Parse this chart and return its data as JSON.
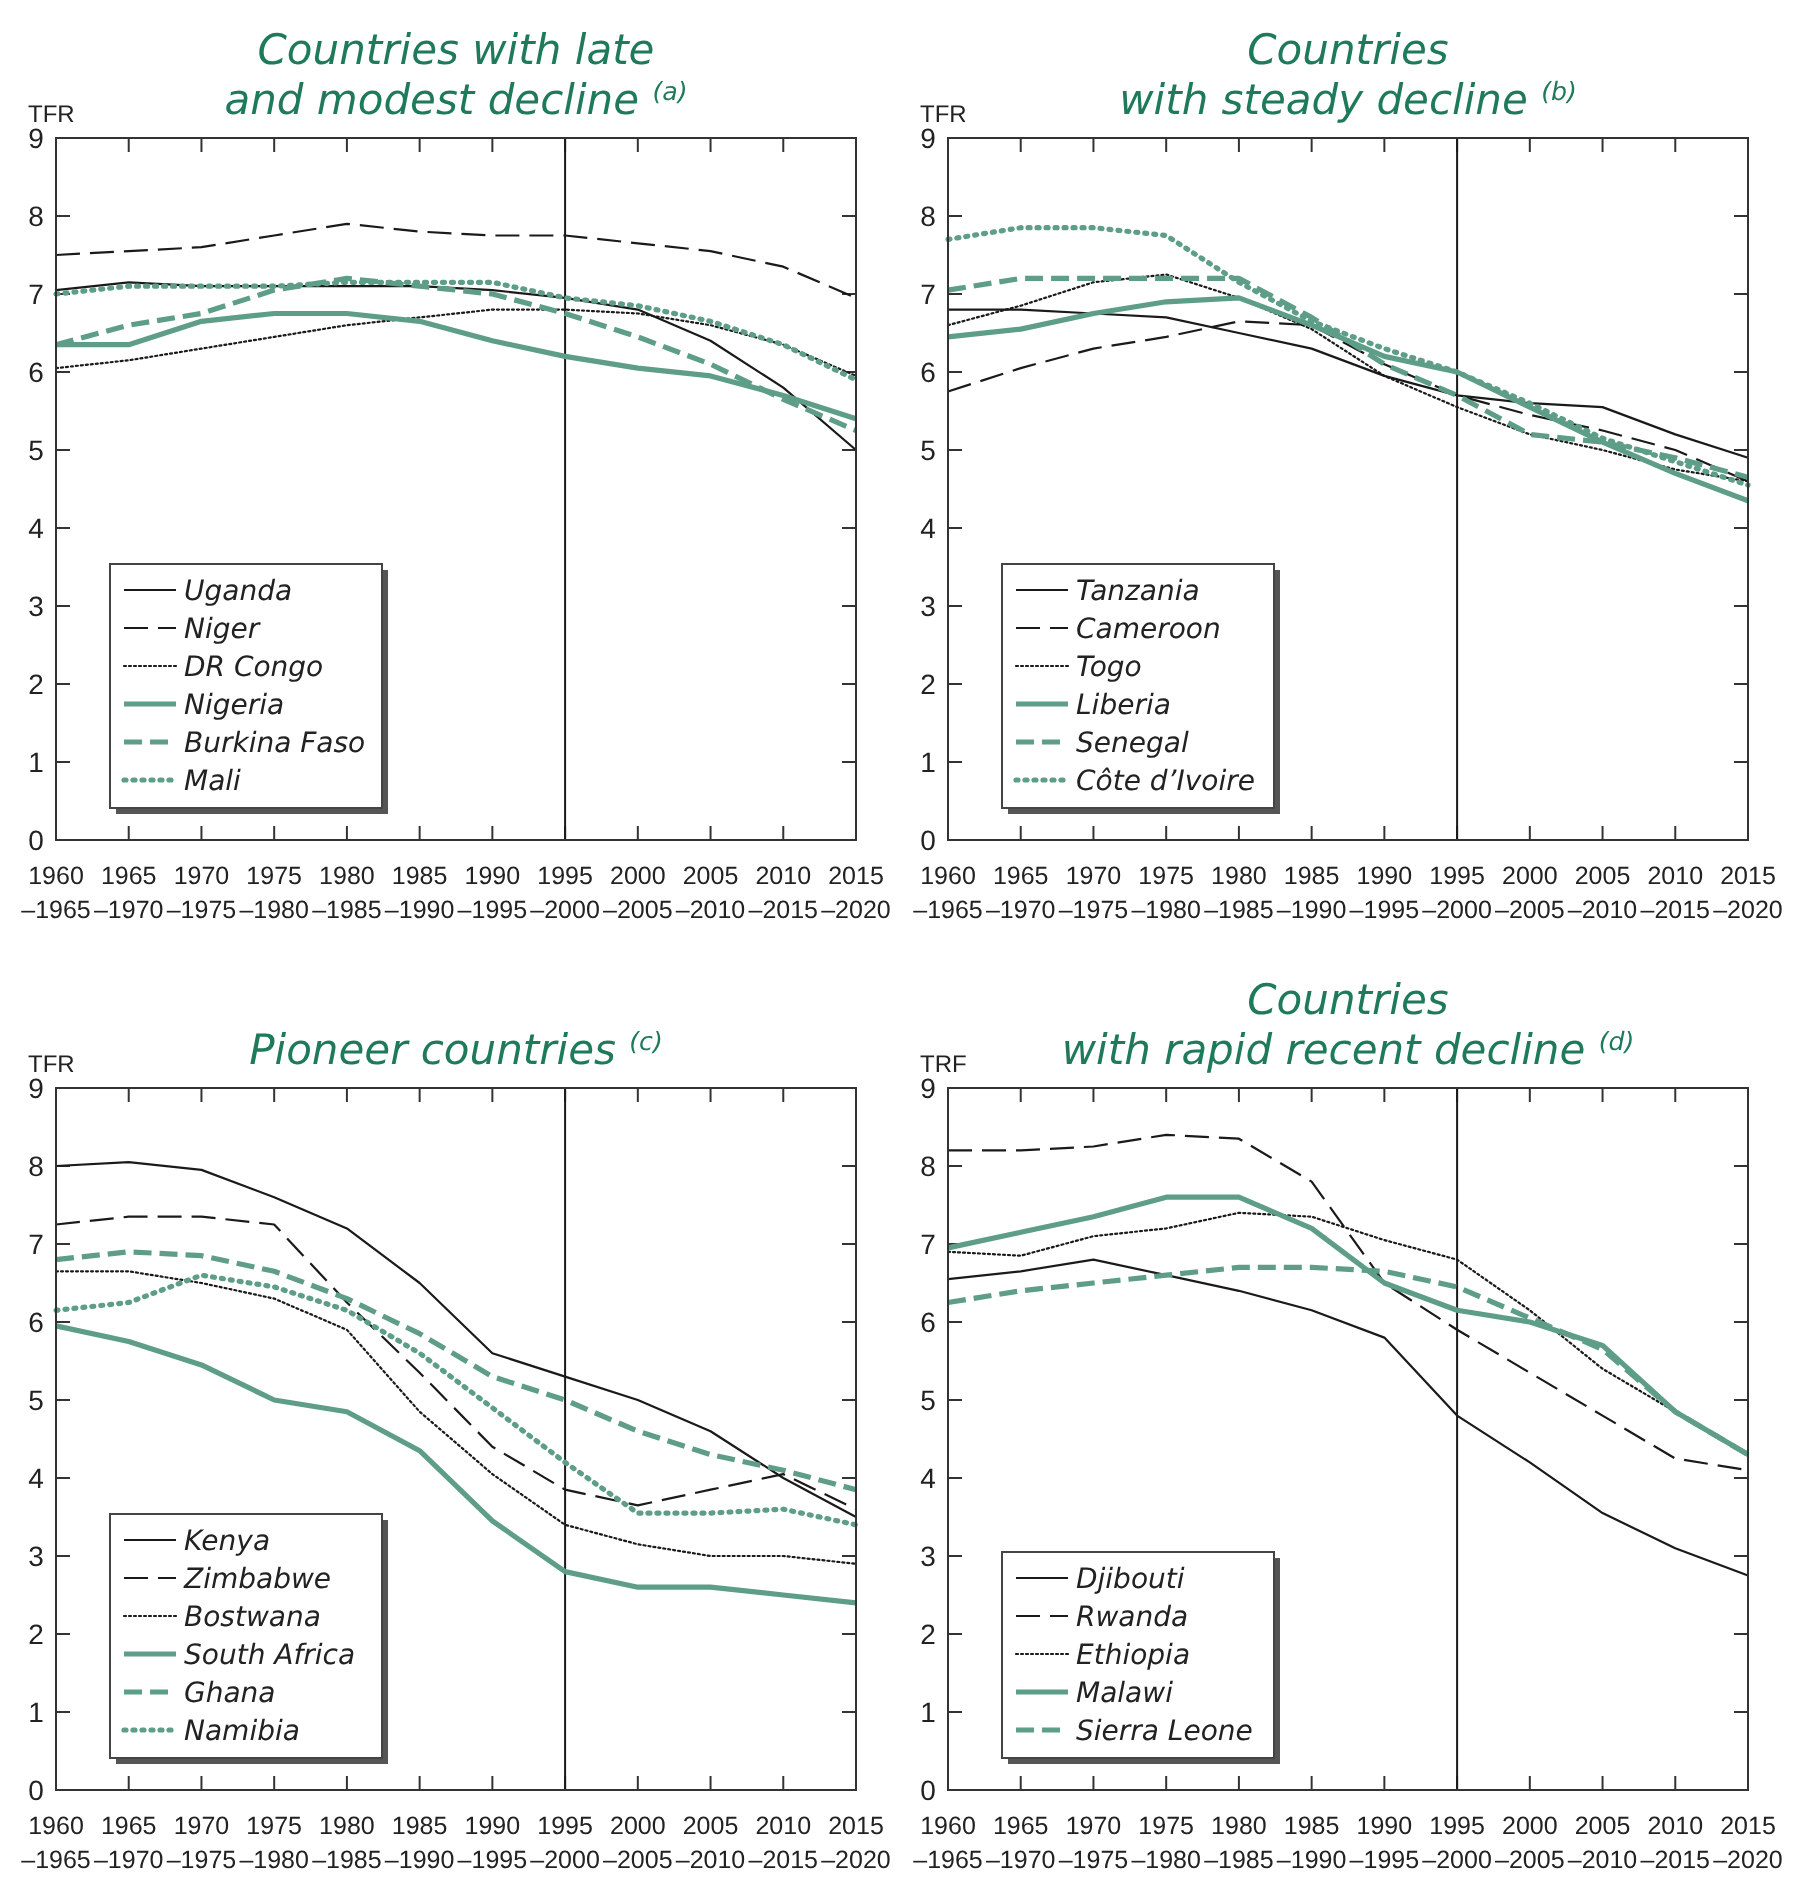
{
  "chart_data": [
    {
      "type": "line",
      "title": "Countries with late\nand modest decline $^{(a)}$",
      "ylabel": "TFR",
      "categories": [
        "1960–1965",
        "1965–1970",
        "1970–1975",
        "1975–1980",
        "1980–1985",
        "1985–1990",
        "1990–1995",
        "1995–2000",
        "2000–2005",
        "2005–2010",
        "2010–2015",
        "2015–2020"
      ],
      "ylim": [
        0,
        9
      ],
      "yticks": [
        0,
        1,
        2,
        3,
        4,
        5,
        6,
        7,
        8,
        9
      ],
      "legend": "bottom left",
      "grid": false,
      "ref_lines": [
        {
          "axis": "x",
          "value": "1995–2000",
          "color": "#1a1a1a"
        }
      ],
      "series": [
        {
          "name": "Uganda",
          "color": "#1a1a1a",
          "line_style": "solid",
          "values": [
            7.05,
            7.15,
            7.1,
            7.1,
            7.1,
            7.1,
            7.05,
            6.95,
            6.8,
            6.4,
            5.8,
            5.0
          ]
        },
        {
          "name": "Niger",
          "color": "#1a1a1a",
          "line_style": "dashed",
          "values": [
            7.5,
            7.55,
            7.6,
            7.75,
            7.9,
            7.8,
            7.75,
            7.75,
            7.65,
            7.55,
            7.35,
            6.95
          ]
        },
        {
          "name": "DR Congo",
          "color": "#1a1a1a",
          "line_style": "dotted",
          "values": [
            6.05,
            6.15,
            6.3,
            6.45,
            6.6,
            6.7,
            6.8,
            6.8,
            6.75,
            6.6,
            6.35,
            5.95
          ]
        },
        {
          "name": "Nigeria",
          "color": "#5e9e88",
          "line_style": "solid",
          "values": [
            6.35,
            6.35,
            6.65,
            6.75,
            6.75,
            6.65,
            6.4,
            6.2,
            6.05,
            5.95,
            5.7,
            5.4
          ]
        },
        {
          "name": "Burkina Faso",
          "color": "#5e9e88",
          "line_style": "dashed",
          "values": [
            6.35,
            6.6,
            6.75,
            7.05,
            7.2,
            7.1,
            7.0,
            6.75,
            6.45,
            6.1,
            5.65,
            5.25
          ]
        },
        {
          "name": "Mali",
          "color": "#5e9e88",
          "line_style": "dotted",
          "values": [
            7.0,
            7.1,
            7.1,
            7.1,
            7.15,
            7.15,
            7.15,
            6.95,
            6.85,
            6.65,
            6.35,
            5.9
          ]
        }
      ]
    },
    {
      "type": "line",
      "title": "Countries\nwith steady decline $^{(b)}$",
      "ylabel": "TFR",
      "categories": [
        "1960–1965",
        "1965–1970",
        "1970–1975",
        "1975–1980",
        "1980–1985",
        "1985–1990",
        "1990–1995",
        "1995–2000",
        "2000–2005",
        "2005–2010",
        "2010–2015",
        "2015–2020"
      ],
      "ylim": [
        0,
        9
      ],
      "yticks": [
        0,
        1,
        2,
        3,
        4,
        5,
        6,
        7,
        8,
        9
      ],
      "legend": "bottom left",
      "grid": false,
      "ref_lines": [
        {
          "axis": "x",
          "value": "1995–2000",
          "color": "#1a1a1a"
        }
      ],
      "series": [
        {
          "name": "Tanzania",
          "color": "#1a1a1a",
          "line_style": "solid",
          "values": [
            6.8,
            6.8,
            6.75,
            6.7,
            6.5,
            6.3,
            5.95,
            5.7,
            5.6,
            5.55,
            5.2,
            4.9
          ]
        },
        {
          "name": "Cameroon",
          "color": "#1a1a1a",
          "line_style": "dashed",
          "values": [
            5.75,
            6.05,
            6.3,
            6.45,
            6.65,
            6.6,
            6.1,
            5.7,
            5.45,
            5.25,
            5.0,
            4.6
          ]
        },
        {
          "name": "Togo",
          "color": "#1a1a1a",
          "line_style": "dotted",
          "values": [
            6.6,
            6.85,
            7.15,
            7.25,
            6.95,
            6.55,
            5.95,
            5.55,
            5.2,
            5.0,
            4.75,
            4.6
          ]
        },
        {
          "name": "Liberia",
          "color": "#5e9e88",
          "line_style": "solid",
          "values": [
            6.45,
            6.55,
            6.75,
            6.9,
            6.95,
            6.6,
            6.2,
            6.0,
            5.55,
            5.1,
            4.7,
            4.35
          ]
        },
        {
          "name": "Senegal",
          "color": "#5e9e88",
          "line_style": "dashed",
          "values": [
            7.05,
            7.2,
            7.2,
            7.2,
            7.2,
            6.7,
            6.1,
            5.7,
            5.2,
            5.1,
            4.9,
            4.65
          ]
        },
        {
          "name": "Côte d’Ivoire",
          "color": "#5e9e88",
          "line_style": "dotted",
          "values": [
            7.7,
            7.85,
            7.85,
            7.75,
            7.15,
            6.65,
            6.3,
            6.0,
            5.6,
            5.15,
            4.85,
            4.55
          ]
        }
      ]
    },
    {
      "type": "line",
      "title": "Pioneer countries $^{(c)}$",
      "ylabel": "TFR",
      "categories": [
        "1960–1965",
        "1965–1970",
        "1970–1975",
        "1975–1980",
        "1980–1985",
        "1985–1990",
        "1990–1995",
        "1995–2000",
        "2000–2005",
        "2005–2010",
        "2010–2015",
        "2015–2020"
      ],
      "ylim": [
        0,
        9
      ],
      "yticks": [
        0,
        1,
        2,
        3,
        4,
        5,
        6,
        7,
        8,
        9
      ],
      "legend": "bottom left",
      "grid": false,
      "ref_lines": [
        {
          "axis": "x",
          "value": "1995–2000",
          "color": "#1a1a1a"
        }
      ],
      "series": [
        {
          "name": "Kenya",
          "color": "#1a1a1a",
          "line_style": "solid",
          "values": [
            8.0,
            8.05,
            7.95,
            7.6,
            7.2,
            6.5,
            5.6,
            5.3,
            5.0,
            4.6,
            4.0,
            3.5
          ]
        },
        {
          "name": "Zimbabwe",
          "color": "#1a1a1a",
          "line_style": "dashed",
          "values": [
            7.25,
            7.35,
            7.35,
            7.25,
            6.25,
            5.35,
            4.4,
            3.85,
            3.65,
            3.85,
            4.05,
            3.6
          ]
        },
        {
          "name": "Bostwana",
          "color": "#1a1a1a",
          "line_style": "dotted",
          "values": [
            6.65,
            6.65,
            6.5,
            6.3,
            5.9,
            4.85,
            4.05,
            3.4,
            3.15,
            3.0,
            3.0,
            2.9
          ]
        },
        {
          "name": "South Africa",
          "color": "#5e9e88",
          "line_style": "solid",
          "values": [
            5.95,
            5.75,
            5.45,
            5.0,
            4.85,
            4.35,
            3.45,
            2.8,
            2.6,
            2.6,
            2.5,
            2.4
          ]
        },
        {
          "name": "Ghana",
          "color": "#5e9e88",
          "line_style": "dashed",
          "values": [
            6.8,
            6.9,
            6.85,
            6.65,
            6.3,
            5.85,
            5.3,
            5.0,
            4.6,
            4.3,
            4.1,
            3.85
          ]
        },
        {
          "name": "Namibia",
          "color": "#5e9e88",
          "line_style": "dotted",
          "values": [
            6.15,
            6.25,
            6.6,
            6.45,
            6.15,
            5.6,
            4.9,
            4.2,
            3.55,
            3.55,
            3.6,
            3.4
          ]
        }
      ]
    },
    {
      "type": "line",
      "title": "Countries\nwith rapid recent decline $^{(d)}$",
      "ylabel": "TRF",
      "categories": [
        "1960–1965",
        "1965–1970",
        "1970–1975",
        "1975–1980",
        "1980–1985",
        "1985–1990",
        "1990–1995",
        "1995–2000",
        "2000–2005",
        "2005–2010",
        "2010–2015",
        "2015–2020"
      ],
      "ylim": [
        0,
        9
      ],
      "yticks": [
        0,
        1,
        2,
        3,
        4,
        5,
        6,
        7,
        8,
        9
      ],
      "legend": "bottom left",
      "grid": false,
      "ref_lines": [
        {
          "axis": "x",
          "value": "1995–2000",
          "color": "#1a1a1a"
        }
      ],
      "series": [
        {
          "name": "Djibouti",
          "color": "#1a1a1a",
          "line_style": "solid",
          "values": [
            6.55,
            6.65,
            6.8,
            6.6,
            6.4,
            6.15,
            5.8,
            4.8,
            4.2,
            3.55,
            3.1,
            2.75
          ]
        },
        {
          "name": "Rwanda",
          "color": "#1a1a1a",
          "line_style": "dashed",
          "values": [
            8.2,
            8.2,
            8.25,
            8.4,
            8.35,
            7.8,
            6.5,
            5.9,
            5.35,
            4.8,
            4.25,
            4.1
          ]
        },
        {
          "name": "Ethiopia",
          "color": "#1a1a1a",
          "line_style": "dotted",
          "values": [
            6.9,
            6.85,
            7.1,
            7.2,
            7.4,
            7.35,
            7.05,
            6.8,
            6.15,
            5.4,
            4.85,
            4.3
          ]
        },
        {
          "name": "Malawi",
          "color": "#5e9e88",
          "line_style": "solid",
          "values": [
            6.95,
            7.15,
            7.35,
            7.6,
            7.6,
            7.2,
            6.5,
            6.15,
            6.0,
            5.7,
            4.85,
            4.3
          ]
        },
        {
          "name": "Sierra Leone",
          "color": "#5e9e88",
          "line_style": "dashed",
          "values": [
            6.25,
            6.4,
            6.5,
            6.6,
            6.7,
            6.7,
            6.65,
            6.45,
            6.05,
            5.65,
            4.85,
            4.3
          ]
        }
      ]
    }
  ]
}
